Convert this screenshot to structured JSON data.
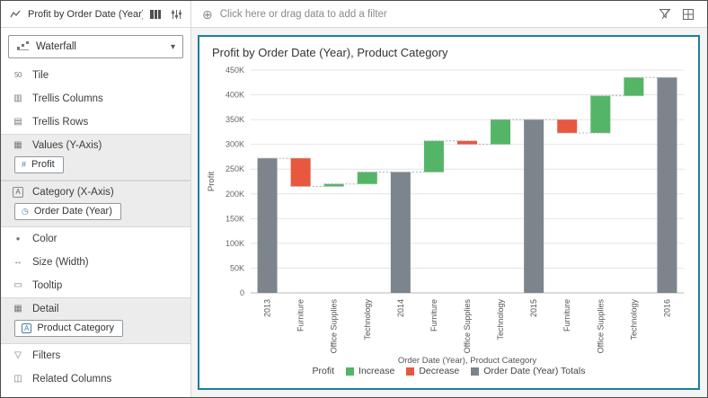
{
  "topbar": {
    "viz_title": "Profit by Order Date (Year), Pr...",
    "filter_placeholder": "Click here or drag data to add a filter"
  },
  "sidebar": {
    "viz_type_label": "Waterfall",
    "rows": {
      "tile": "Tile",
      "trellis_columns": "Trellis Columns",
      "trellis_rows": "Trellis Rows",
      "color": "Color",
      "size": "Size (Width)",
      "tooltip": "Tooltip",
      "filters": "Filters",
      "related_columns": "Related Columns"
    },
    "sections": {
      "values": {
        "label": "Values (Y-Axis)",
        "pill": "Profit"
      },
      "category": {
        "label": "Category (X-Axis)",
        "pill": "Order Date (Year)"
      },
      "detail": {
        "label": "Detail",
        "pill": "Product Category"
      }
    }
  },
  "icons": {
    "plus_circle": "⊕",
    "chevron_down": "▾",
    "clock": "◷",
    "hash": "#",
    "letter_a": "A",
    "tile": "50",
    "trellis_columns": "▥",
    "trellis_rows": "▤",
    "values_axis": "▦",
    "category_axis": "A",
    "color": "●",
    "size": "↔",
    "tooltip": "▭",
    "detail": "▦",
    "filters": "▽",
    "related_columns": "◫"
  },
  "ui_colors": {
    "canvas_border": "#1E7E9A",
    "section_bg": "#ECECEC",
    "increase_green": "#54B567",
    "decrease_red": "#E8573F",
    "total_gray": "#7D858C"
  },
  "chart_data": {
    "type": "waterfall",
    "title": "Profit by Order Date (Year), Product Category",
    "xlabel": "Order Date (Year), Product Category",
    "ylabel": "Profit",
    "ylim_k": [
      0,
      450
    ],
    "grid": true,
    "legend_position": "bottom",
    "y_ticks": [
      {
        "value": 0,
        "label": "0"
      },
      {
        "value": 50,
        "label": "50K"
      },
      {
        "value": 100,
        "label": "100K"
      },
      {
        "value": 150,
        "label": "150K"
      },
      {
        "value": 200,
        "label": "200K"
      },
      {
        "value": 250,
        "label": "250K"
      },
      {
        "value": 300,
        "label": "300K"
      },
      {
        "value": 350,
        "label": "350K"
      },
      {
        "value": 400,
        "label": "400K"
      },
      {
        "value": 450,
        "label": "450K"
      }
    ],
    "bars": [
      {
        "label": "2013",
        "kind": "total",
        "start_k": 0,
        "end_k": 272
      },
      {
        "label": "Furniture",
        "kind": "decrease",
        "start_k": 272,
        "end_k": 215
      },
      {
        "label": "Office Supplies",
        "kind": "increase",
        "start_k": 215,
        "end_k": 220
      },
      {
        "label": "Technology",
        "kind": "increase",
        "start_k": 220,
        "end_k": 244
      },
      {
        "label": "2014",
        "kind": "total",
        "start_k": 0,
        "end_k": 244
      },
      {
        "label": "Furniture",
        "kind": "increase",
        "start_k": 244,
        "end_k": 307
      },
      {
        "label": "Office Supplies",
        "kind": "decrease",
        "start_k": 307,
        "end_k": 300
      },
      {
        "label": "Technology",
        "kind": "increase",
        "start_k": 300,
        "end_k": 350
      },
      {
        "label": "2015",
        "kind": "total",
        "start_k": 0,
        "end_k": 350
      },
      {
        "label": "Furniture",
        "kind": "decrease",
        "start_k": 350,
        "end_k": 323
      },
      {
        "label": "Office Supplies",
        "kind": "increase",
        "start_k": 323,
        "end_k": 398
      },
      {
        "label": "Technology",
        "kind": "increase",
        "start_k": 398,
        "end_k": 435
      },
      {
        "label": "2016",
        "kind": "total",
        "start_k": 0,
        "end_k": 435
      }
    ],
    "colors": {
      "increase": "#54B567",
      "decrease": "#E8573F",
      "total": "#7D858C",
      "grid": "#E4E4E4",
      "axis": "#B8B8B8",
      "connector": "#B0B0B0"
    },
    "legend": {
      "title": "Profit",
      "entries": [
        {
          "label": "Increase",
          "kind": "increase"
        },
        {
          "label": "Decrease",
          "kind": "decrease"
        },
        {
          "label": "Order Date (Year) Totals",
          "kind": "total"
        }
      ]
    }
  }
}
